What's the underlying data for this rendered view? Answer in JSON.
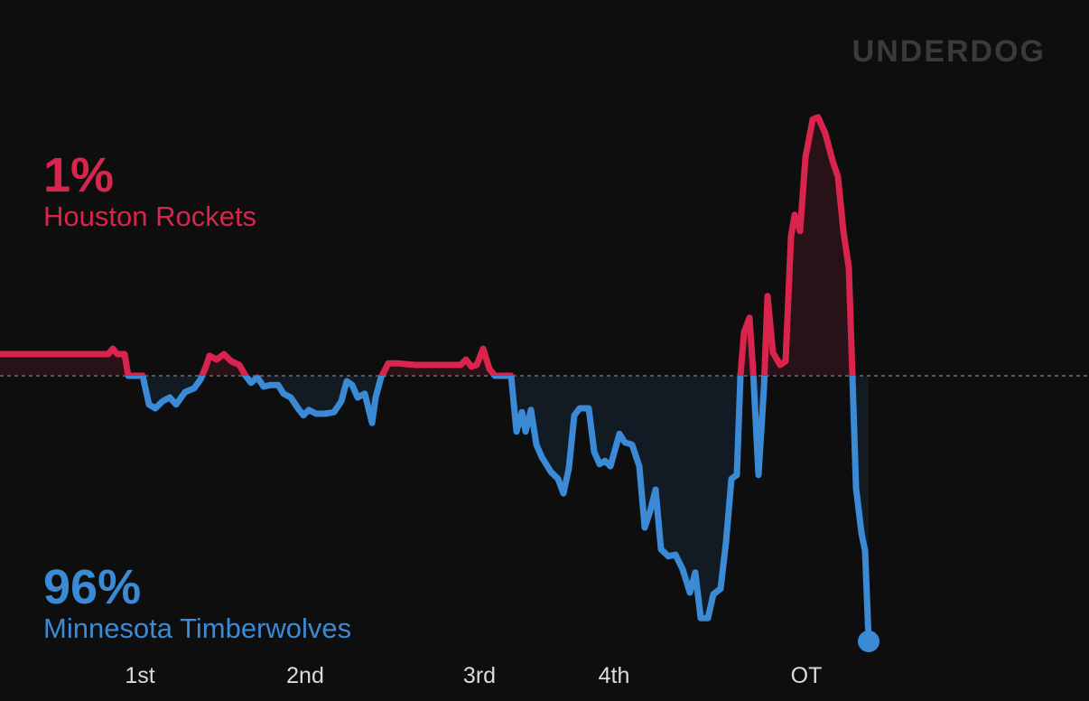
{
  "chart_data": {
    "type": "line",
    "logo": "UNDERDOG",
    "annotations": [
      {
        "label": "Houston Rockets",
        "value": 1,
        "value_label": "1%",
        "color": "#d9254e"
      },
      {
        "label": "Minnesota Timberwolves",
        "value": 96,
        "value_label": "96%",
        "color": "#3b8ad6"
      }
    ],
    "colors": {
      "above": "#d9254e",
      "below": "#3b8ad6"
    },
    "reference_line": 50,
    "xlim": [
      0,
      120
    ],
    "ylim": [
      0,
      100
    ],
    "xticks": [
      {
        "value": 15.5,
        "label": "1st"
      },
      {
        "value": 33.8,
        "label": "2nd"
      },
      {
        "value": 53.1,
        "label": "3rd"
      },
      {
        "value": 68,
        "label": "4th"
      },
      {
        "value": 89.3,
        "label": "OT"
      }
    ],
    "x": [
      0,
      12,
      12.5,
      13,
      13.8,
      14.2,
      15.8,
      16.5,
      17.2,
      18,
      18.8,
      19.5,
      20.5,
      21.5,
      22.2,
      22.8,
      23.2,
      24,
      24.8,
      25.6,
      26.5,
      27.2,
      27.8,
      28.5,
      29.2,
      30,
      30.8,
      31.4,
      32.2,
      33,
      33.6,
      34.2,
      35,
      36,
      37,
      37.8,
      38.4,
      39,
      39.6,
      40.4,
      41.2,
      41.6,
      42.2,
      43,
      44,
      46,
      51,
      51.6,
      52.2,
      52.8,
      53.5,
      54.2,
      54.8,
      56.6,
      57.2,
      57.8,
      58.2,
      58.8,
      59.4,
      60,
      61,
      61.8,
      62.4,
      63,
      63.6,
      64.2,
      65.2,
      65.8,
      66.4,
      67,
      67.6,
      68.6,
      69.2,
      70,
      70.8,
      71.4,
      72,
      72.6,
      73.2,
      74,
      74.8,
      75.6,
      76.4,
      77,
      77.6,
      78.4,
      79,
      79.8,
      80.4,
      81,
      81.6,
      82,
      82.4,
      83,
      83.4,
      84,
      84.6,
      85,
      85.6,
      86.4,
      87,
      87.6,
      88,
      88.6,
      89.2,
      90,
      90.6,
      91.4,
      92.2,
      92.8,
      93.4,
      94,
      94.4,
      94.8,
      95.4,
      95.8,
      96.2
    ],
    "values": [
      54,
      54,
      55,
      54,
      54,
      50,
      50,
      44.7,
      44,
      45.3,
      46,
      44.7,
      47,
      47.7,
      49.3,
      51.7,
      53.7,
      53,
      54,
      52.7,
      52,
      50,
      48.7,
      49.7,
      48,
      48.3,
      48.3,
      46.7,
      46,
      44,
      42.7,
      43.7,
      43,
      43,
      43.3,
      45.3,
      49,
      48.3,
      46,
      46.7,
      41.3,
      46,
      49.7,
      52.3,
      52.3,
      52,
      52,
      53,
      51.7,
      52,
      55,
      51.3,
      50,
      50,
      39.7,
      43.3,
      39.7,
      43.7,
      37.3,
      35,
      32.3,
      31,
      28.3,
      33,
      42.7,
      44,
      44,
      36,
      33.7,
      34.3,
      33.3,
      39.3,
      37.7,
      37.3,
      33.3,
      22,
      25,
      29,
      18,
      16.7,
      17,
      14.3,
      10,
      13.7,
      5.3,
      5.3,
      9.7,
      10.7,
      19.3,
      31,
      31.7,
      50,
      58,
      60.7,
      51,
      31.7,
      47.7,
      64.7,
      54.3,
      52,
      52.7,
      75.7,
      79.7,
      76.7,
      90.3,
      97.3,
      97.7,
      94.7,
      89.7,
      86.7,
      76.7,
      70,
      50,
      29.3,
      21,
      17.7,
      1
    ]
  }
}
